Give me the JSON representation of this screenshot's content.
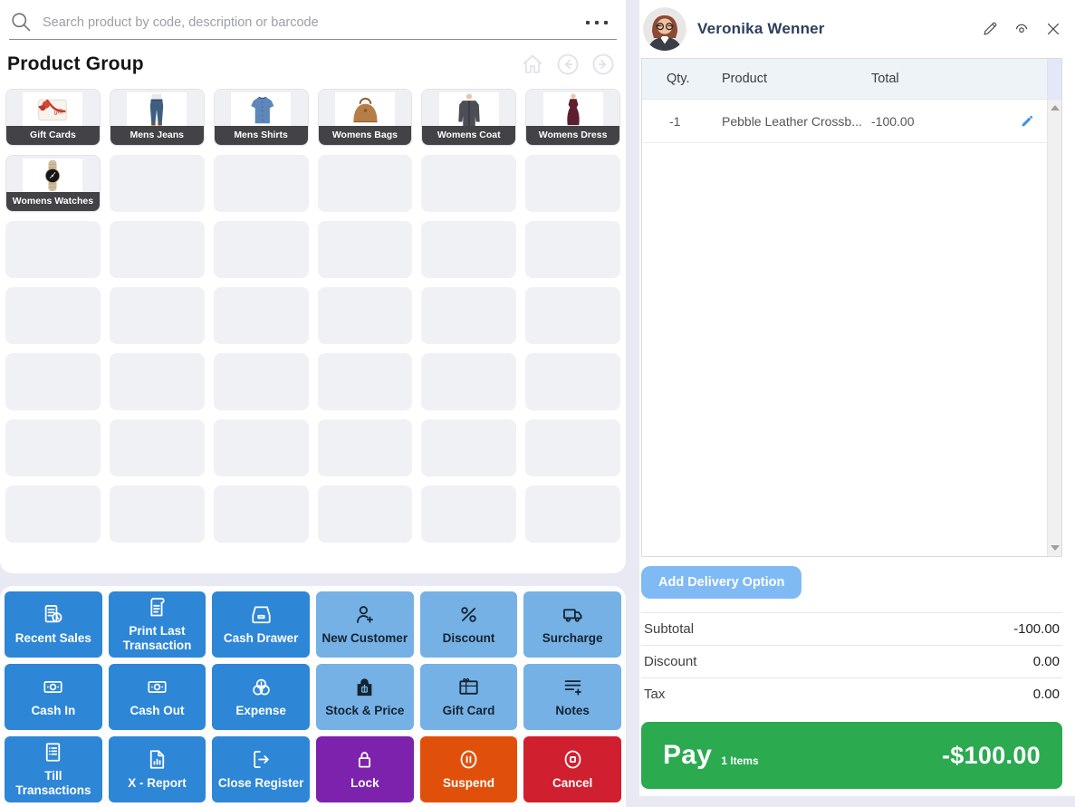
{
  "colors": {
    "blue": "#2e86d6",
    "light_blue": "#76b1e5",
    "purple": "#7d22ad",
    "orange": "#e1500b",
    "red": "#d01f2e",
    "green": "#2baa50",
    "delivery_blue": "#80baf4",
    "edit_blue": "#3d8fe0",
    "navy": "#2d3e5f",
    "lavender": "#e9e9f3",
    "tile_label_bg": "#434347"
  },
  "search": {
    "placeholder": "Search product by code, description or barcode",
    "more_icon": "more-dots"
  },
  "header": {
    "title": "Product Group",
    "nav_icons": [
      "home-icon",
      "back-circle-icon",
      "forward-circle-icon"
    ]
  },
  "product_groups": [
    {
      "label": "Gift Cards",
      "icon": "gift"
    },
    {
      "label": "Mens Jeans",
      "icon": "jeans"
    },
    {
      "label": "Mens Shirts",
      "icon": "shirt"
    },
    {
      "label": "Womens Bags",
      "icon": "bag"
    },
    {
      "label": "Womens Coat",
      "icon": "coat"
    },
    {
      "label": "Womens Dress",
      "icon": "dress"
    },
    {
      "label": "Womens Watches",
      "icon": "watch"
    }
  ],
  "grid": {
    "columns": 6,
    "rows": 7,
    "empty_tiles": 35
  },
  "actions": [
    {
      "label": "Recent Sales",
      "icon": "recent-sales",
      "variant": "blue"
    },
    {
      "label": "Print Last Transaction",
      "icon": "print-last",
      "variant": "blue"
    },
    {
      "label": "Cash Drawer",
      "icon": "cash-drawer",
      "variant": "blue"
    },
    {
      "label": "New Customer",
      "icon": "new-customer",
      "variant": "lightblue"
    },
    {
      "label": "Discount",
      "icon": "percent",
      "variant": "lightblue"
    },
    {
      "label": "Surcharge",
      "icon": "truck",
      "variant": "lightblue"
    },
    {
      "label": "Cash In",
      "icon": "banknote",
      "variant": "blue"
    },
    {
      "label": "Cash Out",
      "icon": "banknote",
      "variant": "blue"
    },
    {
      "label": "Expense",
      "icon": "coins",
      "variant": "blue"
    },
    {
      "label": "Stock & Price",
      "icon": "stock-bag",
      "variant": "lightblue"
    },
    {
      "label": "Gift Card",
      "icon": "gift-card",
      "variant": "lightblue"
    },
    {
      "label": "Notes",
      "icon": "notes",
      "variant": "lightblue"
    },
    {
      "label": "Till Transactions",
      "icon": "till",
      "variant": "blue"
    },
    {
      "label": "X - Report",
      "icon": "x-report",
      "variant": "blue"
    },
    {
      "label": "Close Register",
      "icon": "close-register",
      "variant": "blue"
    },
    {
      "label": "Lock",
      "icon": "lock",
      "variant": "purple"
    },
    {
      "label": "Suspend",
      "icon": "suspend",
      "variant": "orange"
    },
    {
      "label": "Cancel",
      "icon": "cancel",
      "variant": "red"
    }
  ],
  "customer": {
    "name": "Veronika Wenner",
    "header_icons": [
      "edit-pencil-icon",
      "view-eye-icon",
      "close-x-icon"
    ]
  },
  "cart": {
    "columns": [
      "Qty.",
      "Product",
      "Total"
    ],
    "rows": [
      {
        "qty": "-1",
        "product": "Pebble Leather Crossb...",
        "total": "-100.00"
      }
    ]
  },
  "delivery": {
    "label": "Add Delivery Option"
  },
  "totals": [
    {
      "label": "Subtotal",
      "value": "-100.00"
    },
    {
      "label": "Discount",
      "value": "0.00"
    },
    {
      "label": "Tax",
      "value": "0.00"
    }
  ],
  "pay": {
    "label": "Pay",
    "items_label": "1 Items",
    "amount": "-$100.00"
  }
}
